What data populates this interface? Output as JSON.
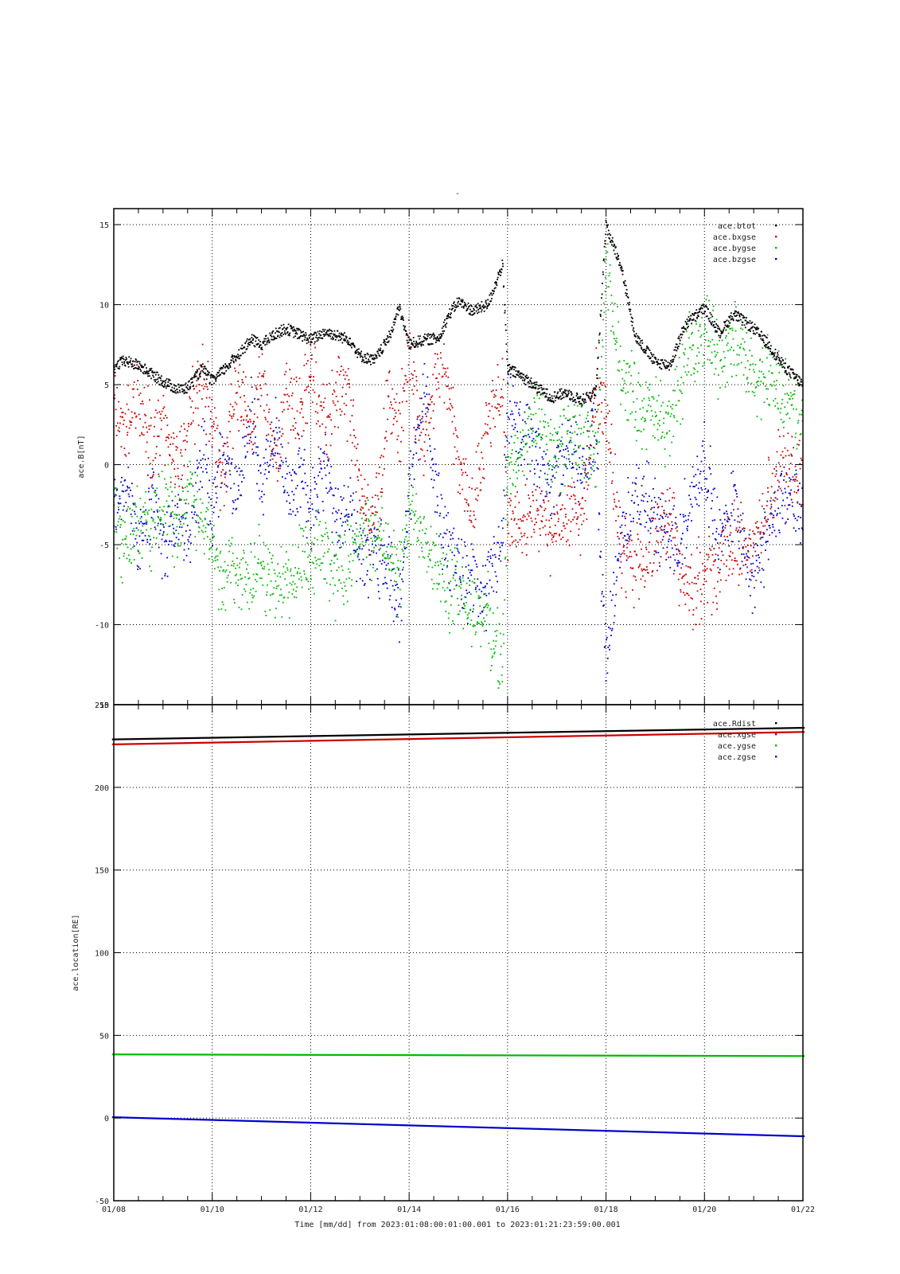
{
  "page_title_mark": "-",
  "time_axis": {
    "tick_labels": [
      "01/08",
      "01/10",
      "01/12",
      "01/14",
      "01/16",
      "01/18",
      "01/20",
      "01/22"
    ],
    "xlabel": "Time [mm/dd]  from 2023:01:08:00:01:00.001  to  2023:01:21:23:59:00.001",
    "range_days": [
      0,
      14
    ]
  },
  "chart_data": [
    {
      "type": "scatter",
      "ylabel": "ace.B[nT]",
      "ylim": [
        -15,
        16
      ],
      "yticks": [
        -15,
        -10,
        -5,
        0,
        5,
        10,
        15
      ],
      "grid": true,
      "legend_placement": "top-right",
      "series": [
        {
          "name": "ace.btot",
          "color": "#000000",
          "x": [
            0,
            0.2,
            0.5,
            0.8,
            1.0,
            1.3,
            1.5,
            1.8,
            2.0,
            2.2,
            2.5,
            2.8,
            3.0,
            3.3,
            3.5,
            3.8,
            4.0,
            4.3,
            4.5,
            4.8,
            5.0,
            5.3,
            5.6,
            5.8,
            6.0,
            6.3,
            6.6,
            6.8,
            7.0,
            7.3,
            7.6,
            7.9,
            8.0,
            8.3,
            8.6,
            8.9,
            9.2,
            9.5,
            9.8,
            10.0,
            10.3,
            10.6,
            11.0,
            11.3,
            11.6,
            12.0,
            12.3,
            12.6,
            13.0,
            13.3,
            13.6,
            14.0
          ],
          "y": [
            6.0,
            6.5,
            6.2,
            5.6,
            5.2,
            4.7,
            4.8,
            6.0,
            5.2,
            5.8,
            6.8,
            7.8,
            7.5,
            8.2,
            8.5,
            8.1,
            7.8,
            8.3,
            8.1,
            7.8,
            6.8,
            6.5,
            8.0,
            9.8,
            7.5,
            7.8,
            7.9,
            9.3,
            10.2,
            9.6,
            10.0,
            12.5,
            6.0,
            5.5,
            4.8,
            4.2,
            4.5,
            4.0,
            4.6,
            15.0,
            12.5,
            8.0,
            6.4,
            6.2,
            8.7,
            9.8,
            8.2,
            9.4,
            8.5,
            7.5,
            6.2,
            5.0
          ]
        },
        {
          "name": "ace.bxgse",
          "color": "#cc0000",
          "x": [
            0,
            0.2,
            0.5,
            0.8,
            1.0,
            1.3,
            1.5,
            1.8,
            2.0,
            2.2,
            2.5,
            2.8,
            3.0,
            3.3,
            3.5,
            3.8,
            4.0,
            4.3,
            4.5,
            4.8,
            5.0,
            5.3,
            5.6,
            5.8,
            6.0,
            6.3,
            6.6,
            6.8,
            7.0,
            7.3,
            7.6,
            7.9,
            8.0,
            8.3,
            8.6,
            8.9,
            9.2,
            9.5,
            9.8,
            10.0,
            10.3,
            10.6,
            11.0,
            11.3,
            11.6,
            12.0,
            12.3,
            12.6,
            13.0,
            13.3,
            13.6,
            14.0
          ],
          "y": [
            4.0,
            2.0,
            4.5,
            1.0,
            3.0,
            -0.5,
            2.5,
            5.5,
            3.0,
            -1.0,
            4.5,
            2.0,
            5.5,
            0.5,
            4.0,
            3.5,
            6.0,
            2.0,
            5.0,
            4.0,
            -2.0,
            -4.0,
            4.5,
            2.0,
            7.0,
            1.0,
            6.5,
            5.0,
            0.0,
            -3.0,
            3.0,
            5.0,
            -3.5,
            -4.0,
            -3.0,
            -4.5,
            -3.0,
            -3.5,
            5.0,
            3.0,
            -5.5,
            -6.5,
            -5.0,
            -3.0,
            -8.0,
            -7.0,
            -6.5,
            -4.5,
            -5.5,
            -2.0,
            0.5,
            -1.0
          ]
        },
        {
          "name": "ace.bygse",
          "color": "#00bb00",
          "x": [
            0,
            0.2,
            0.5,
            0.8,
            1.0,
            1.3,
            1.5,
            1.8,
            2.0,
            2.2,
            2.5,
            2.8,
            3.0,
            3.3,
            3.5,
            3.8,
            4.0,
            4.3,
            4.5,
            4.8,
            5.0,
            5.3,
            5.6,
            5.8,
            6.0,
            6.3,
            6.6,
            6.8,
            7.0,
            7.3,
            7.6,
            7.9,
            8.0,
            8.3,
            8.6,
            8.9,
            9.2,
            9.5,
            9.8,
            10.0,
            10.3,
            10.6,
            11.0,
            11.3,
            11.6,
            12.0,
            12.3,
            12.6,
            13.0,
            13.3,
            13.6,
            14.0
          ],
          "y": [
            -2.5,
            -5.0,
            -3.0,
            -4.5,
            -2.0,
            -4.0,
            -1.0,
            -3.5,
            -5.0,
            -7.0,
            -6.5,
            -7.5,
            -6.0,
            -8.0,
            -7.0,
            -6.5,
            -6.5,
            -5.0,
            -7.0,
            -5.5,
            -4.0,
            -4.5,
            -5.0,
            -7.5,
            -3.0,
            -4.0,
            -6.5,
            -8.0,
            -7.5,
            -9.0,
            -9.5,
            -12.5,
            -1.0,
            1.0,
            3.0,
            0.5,
            1.5,
            2.0,
            0.0,
            12.0,
            6.0,
            4.0,
            3.0,
            2.5,
            6.0,
            8.5,
            7.0,
            8.0,
            5.0,
            6.0,
            4.0,
            3.0
          ]
        },
        {
          "name": "ace.bzgse",
          "color": "#0000cc",
          "x": [
            0,
            0.2,
            0.5,
            0.8,
            1.0,
            1.3,
            1.5,
            1.8,
            2.0,
            2.2,
            2.5,
            2.8,
            3.0,
            3.3,
            3.5,
            3.8,
            4.0,
            4.3,
            4.5,
            4.8,
            5.0,
            5.3,
            5.6,
            5.8,
            6.0,
            6.3,
            6.6,
            6.8,
            7.0,
            7.3,
            7.6,
            7.9,
            8.0,
            8.3,
            8.6,
            8.9,
            9.2,
            9.5,
            9.8,
            10.0,
            10.3,
            10.6,
            11.0,
            11.3,
            11.6,
            12.0,
            12.3,
            12.6,
            13.0,
            13.3,
            13.6,
            14.0
          ],
          "y": [
            -3.0,
            -1.0,
            -4.5,
            -2.0,
            -5.0,
            -3.0,
            -5.0,
            0.5,
            -3.0,
            1.0,
            -2.0,
            3.0,
            -1.5,
            2.0,
            -2.0,
            0.0,
            -3.0,
            0.0,
            -4.0,
            -2.0,
            -6.0,
            -5.0,
            -7.0,
            -9.0,
            -2.0,
            5.0,
            -3.0,
            -5.5,
            -6.0,
            -8.0,
            -7.5,
            -5.0,
            3.0,
            2.0,
            0.0,
            -1.0,
            1.0,
            0.0,
            2.0,
            -13.0,
            -4.5,
            -2.0,
            -3.0,
            -5.0,
            -3.5,
            0.5,
            -5.0,
            -2.0,
            -7.5,
            -4.0,
            -1.5,
            -3.0
          ]
        }
      ]
    },
    {
      "type": "scatter",
      "ylabel": "ace.location[RE]",
      "ylim": [
        -50,
        250
      ],
      "yticks": [
        -50,
        0,
        50,
        100,
        150,
        200,
        250
      ],
      "grid": true,
      "legend_placement": "top-right",
      "series": [
        {
          "name": "ace.Rdist",
          "color": "#000000",
          "x": [
            0,
            14
          ],
          "y": [
            229,
            236
          ]
        },
        {
          "name": "ace.xgse",
          "color": "#cc0000",
          "x": [
            0,
            14
          ],
          "y": [
            226,
            233.5
          ]
        },
        {
          "name": "ace.ygse",
          "color": "#00bb00",
          "x": [
            0,
            14
          ],
          "y": [
            38.5,
            37.5
          ]
        },
        {
          "name": "ace.zgse",
          "color": "#0000cc",
          "x": [
            0,
            14
          ],
          "y": [
            0.5,
            -11
          ]
        }
      ]
    }
  ]
}
